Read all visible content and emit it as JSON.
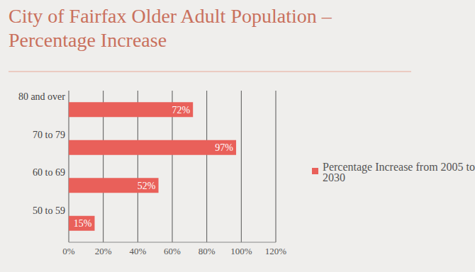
{
  "chart_data": {
    "type": "bar",
    "orientation": "horizontal",
    "title": "City of Fairfax Older Adult Population – Percentage Increase",
    "categories": [
      "80 and over",
      "70 to 79",
      "60 to 69",
      "50 to 59"
    ],
    "series": [
      {
        "name": "Percentage Increase from 2005 to 2030",
        "color": "#e9605a",
        "values": [
          72,
          97,
          52,
          15
        ],
        "value_labels": [
          "72%",
          "97%",
          "52%",
          "15%"
        ]
      }
    ],
    "xlim": [
      0,
      120
    ],
    "xticks": [
      {
        "value": 0,
        "label": "0%"
      },
      {
        "value": 20,
        "label": "20%"
      },
      {
        "value": 40,
        "label": "40%"
      },
      {
        "value": 60,
        "label": "60%"
      },
      {
        "value": 80,
        "label": "80%"
      },
      {
        "value": 100,
        "label": "100%"
      },
      {
        "value": 120,
        "label": "120%"
      }
    ],
    "grid": true,
    "data_labels": true,
    "legend": "right"
  }
}
